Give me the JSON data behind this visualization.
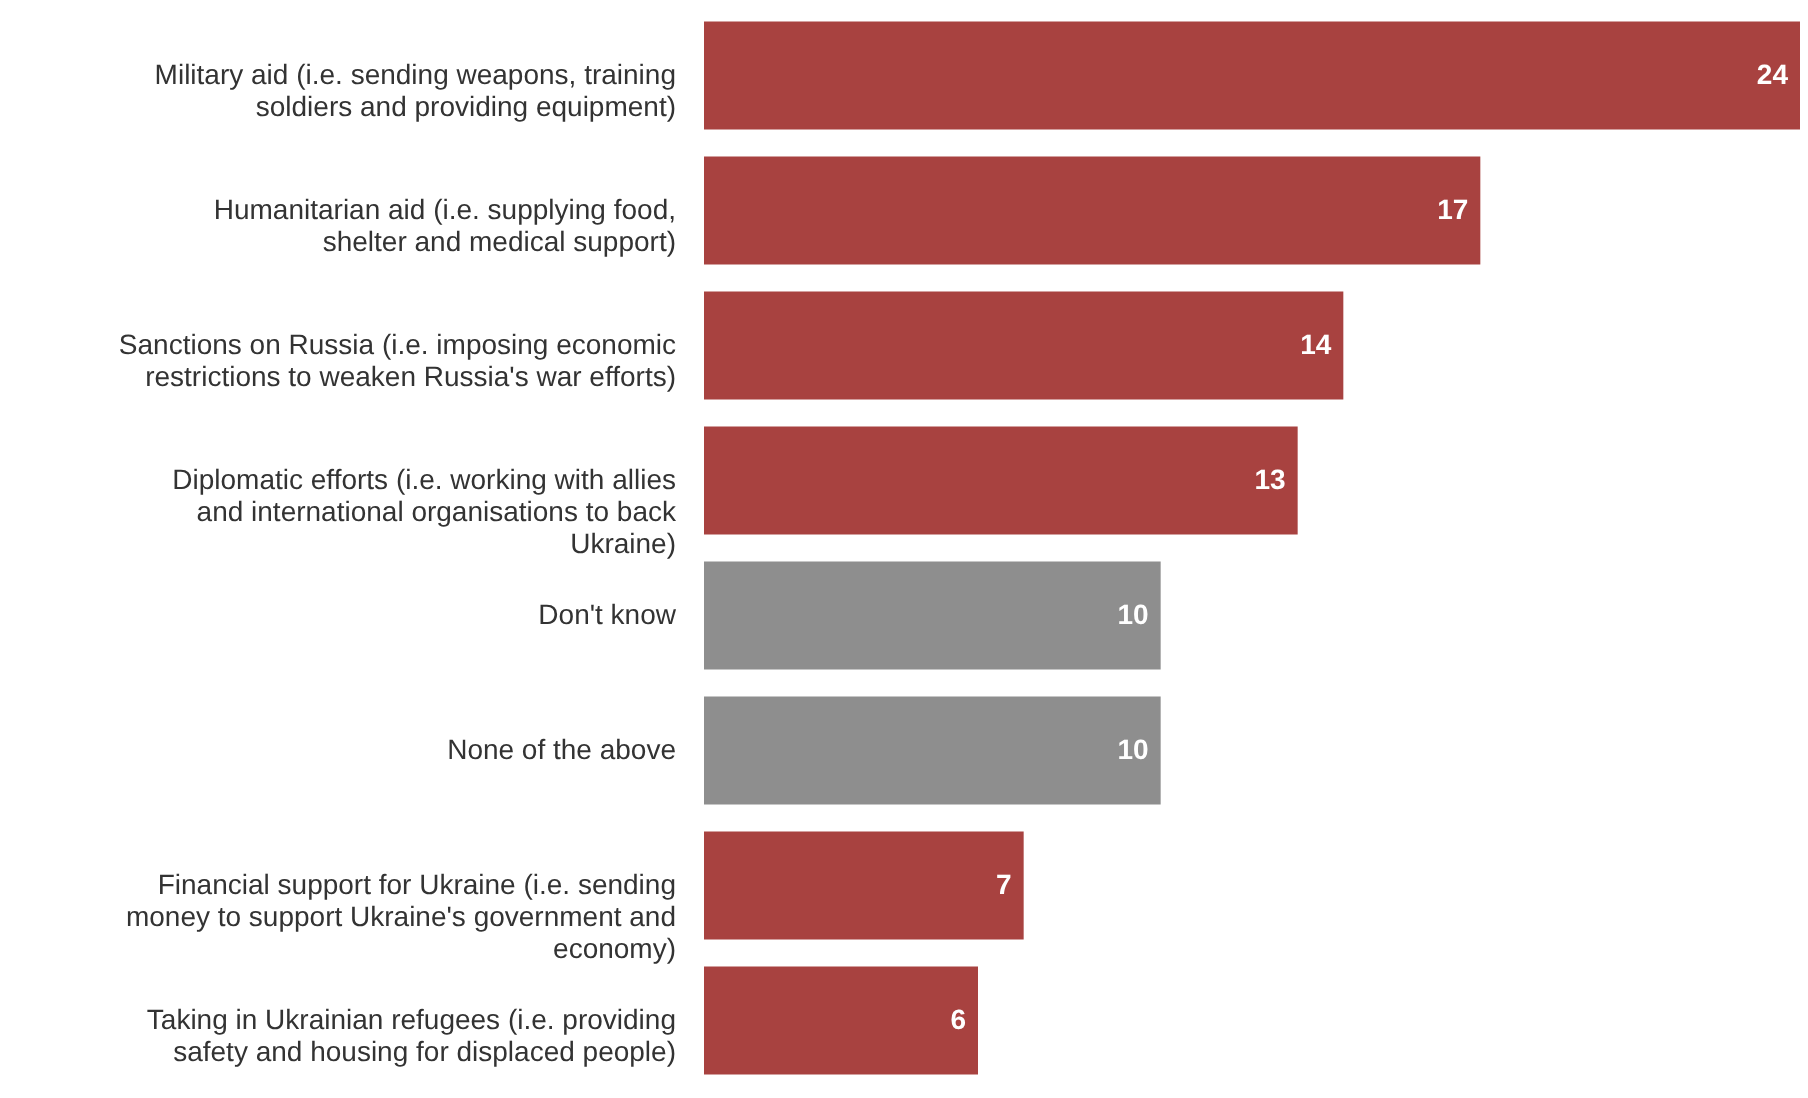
{
  "chart_data": {
    "type": "bar",
    "orientation": "horizontal",
    "data_labels": true,
    "categories": [
      "Military aid (i.e. sending weapons, training soldiers and providing equipment)",
      "Humanitarian aid (i.e. supplying food, shelter and medical support)",
      "Sanctions on Russia (i.e. imposing economic restrictions to weaken Russia's war efforts)",
      "Diplomatic efforts (i.e. working with allies and international organisations to back Ukraine)",
      "Don't know",
      "None of the above",
      "Financial support for Ukraine (i.e. sending money to support Ukraine's government and economy)",
      "Taking in Ukrainian refugees (i.e. providing safety and housing for displaced people)"
    ],
    "values": [
      24,
      17,
      14,
      13,
      10,
      10,
      7,
      6
    ],
    "colors": [
      "#a84240",
      "#a84240",
      "#a84240",
      "#a84240",
      "#8e8e8e",
      "#8e8e8e",
      "#a84240",
      "#a84240"
    ]
  }
}
